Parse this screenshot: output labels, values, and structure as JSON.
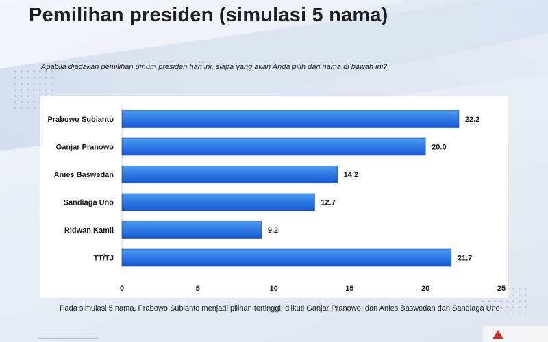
{
  "header": {
    "title": "Pemilihan presiden (simulasi 5 nama)",
    "question": "Apabila diadakan pemilihan umum presiden hari ini, siapa yang akan Anda pilih dari nama di bawah ini?"
  },
  "footnote": "Pada simulasi 5 nama, Prabowo Subianto menjadi pilihan tertinggi, diikuti Ganjar Pranowo, dan Anies Baswedan dan Sandiaga Uno.",
  "colors": {
    "bar_top": "#4a9bf2",
    "bar_bottom": "#1658d3",
    "axis": "#d9d9d9",
    "text": "#1a1a1a"
  },
  "chart_data": {
    "type": "bar",
    "orientation": "horizontal",
    "categories": [
      "Prabowo Subianto",
      "Ganjar Pranowo",
      "Anies Baswedan",
      "Sandiaga Uno",
      "Ridwan Kamil",
      "TT/TJ"
    ],
    "values": [
      22.2,
      20.0,
      14.2,
      12.7,
      9.2,
      21.7
    ],
    "value_labels": [
      "22.2",
      "20.0",
      "14.2",
      "12.7",
      "9.2",
      "21.7"
    ],
    "xlim": [
      0,
      25
    ],
    "xticks": [
      0,
      5,
      10,
      15,
      20,
      25
    ],
    "grid": false,
    "legend": "none"
  }
}
